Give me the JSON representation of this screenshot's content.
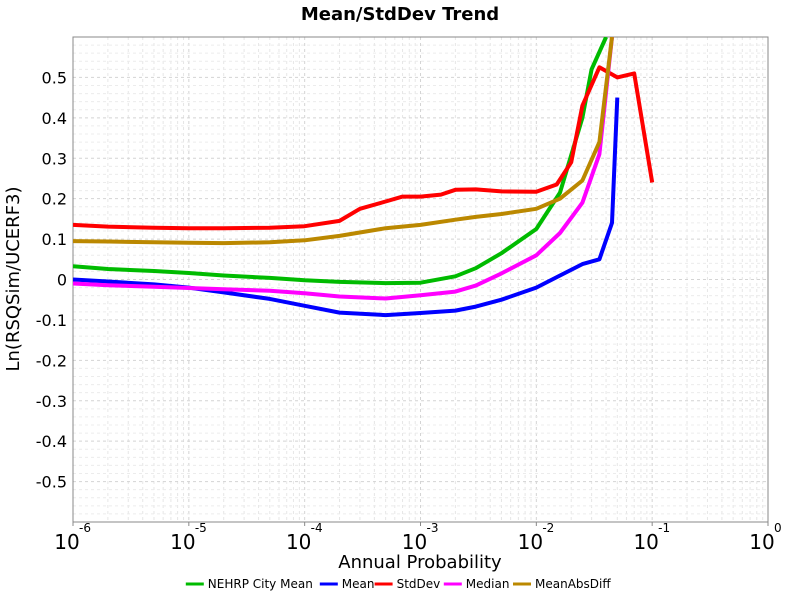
{
  "chart_data": {
    "type": "line",
    "title": "Mean/StdDev Trend",
    "xlabel": "Annual Probability",
    "ylabel": "Ln(RSQSim/UCERF3)",
    "x_scale": "log",
    "xlim": [
      1e-06,
      1
    ],
    "ylim": [
      -0.6,
      0.6
    ],
    "grid": true,
    "legend_position": "bottom",
    "x_tick_labels": [
      {
        "base": "10",
        "exp": "-6"
      },
      {
        "base": "10",
        "exp": "-5"
      },
      {
        "base": "10",
        "exp": "-4"
      },
      {
        "base": "10",
        "exp": "-3"
      },
      {
        "base": "10",
        "exp": "-2"
      },
      {
        "base": "10",
        "exp": "-1"
      },
      {
        "base": "10",
        "exp": "0"
      }
    ],
    "y_ticks": [
      0.5,
      0.4,
      0.3,
      0.2,
      0.1,
      0,
      -0.1,
      -0.2,
      -0.3,
      -0.4,
      -0.5
    ],
    "y_tick_labels": [
      "0.5",
      "0.4",
      "0.3",
      "0.2",
      "0.1",
      "0",
      "-0.1",
      "-0.2",
      "-0.3",
      "-0.4",
      "-0.5"
    ],
    "series": [
      {
        "name": "NEHRP City Mean",
        "color": "#00bb00",
        "x": [
          1e-06,
          2e-06,
          5e-06,
          1e-05,
          2e-05,
          5e-05,
          0.0001,
          0.0002,
          0.0005,
          0.001,
          0.002,
          0.003,
          0.005,
          0.01,
          0.016,
          0.025,
          0.03,
          0.04
        ],
        "y": [
          0.033,
          0.026,
          0.021,
          0.016,
          0.01,
          0.004,
          -0.002,
          -0.006,
          -0.009,
          -0.008,
          0.008,
          0.028,
          0.065,
          0.125,
          0.215,
          0.4,
          0.52,
          0.6
        ]
      },
      {
        "name": "Mean",
        "color": "#0000ff",
        "x": [
          1e-06,
          2e-06,
          5e-06,
          1e-05,
          2e-05,
          5e-05,
          0.0001,
          0.0002,
          0.0005,
          0.001,
          0.002,
          0.003,
          0.005,
          0.01,
          0.016,
          0.025,
          0.035,
          0.045,
          0.05
        ],
        "y": [
          0.0,
          -0.005,
          -0.012,
          -0.02,
          -0.032,
          -0.048,
          -0.065,
          -0.082,
          -0.088,
          -0.083,
          -0.077,
          -0.067,
          -0.05,
          -0.02,
          0.01,
          0.038,
          0.05,
          0.14,
          0.45
        ]
      },
      {
        "name": "StdDev",
        "color": "#ff0000",
        "x": [
          1e-06,
          2e-06,
          5e-06,
          1e-05,
          2e-05,
          5e-05,
          0.0001,
          0.0002,
          0.0003,
          0.0005,
          0.0007,
          0.001,
          0.0015,
          0.002,
          0.003,
          0.005,
          0.01,
          0.015,
          0.02,
          0.025,
          0.035,
          0.05,
          0.07,
          0.1
        ],
        "y": [
          0.135,
          0.131,
          0.128,
          0.127,
          0.127,
          0.128,
          0.132,
          0.145,
          0.175,
          0.193,
          0.205,
          0.205,
          0.21,
          0.222,
          0.223,
          0.218,
          0.217,
          0.235,
          0.29,
          0.43,
          0.525,
          0.5,
          0.51,
          0.24
        ]
      },
      {
        "name": "Median",
        "color": "#ff00ff",
        "x": [
          1e-06,
          2e-06,
          5e-06,
          1e-05,
          2e-05,
          5e-05,
          0.0001,
          0.0002,
          0.0005,
          0.001,
          0.002,
          0.003,
          0.005,
          0.01,
          0.016,
          0.025,
          0.035,
          0.045
        ],
        "y": [
          -0.01,
          -0.014,
          -0.018,
          -0.021,
          -0.024,
          -0.028,
          -0.034,
          -0.042,
          -0.047,
          -0.039,
          -0.03,
          -0.015,
          0.015,
          0.06,
          0.115,
          0.19,
          0.31,
          0.6
        ]
      },
      {
        "name": "MeanAbsDiff",
        "color": "#bb8800",
        "x": [
          1e-06,
          2e-06,
          5e-06,
          1e-05,
          2e-05,
          5e-05,
          0.0001,
          0.0002,
          0.0005,
          0.001,
          0.002,
          0.003,
          0.005,
          0.01,
          0.016,
          0.025,
          0.035,
          0.045
        ],
        "y": [
          0.095,
          0.094,
          0.092,
          0.091,
          0.09,
          0.092,
          0.097,
          0.108,
          0.127,
          0.135,
          0.148,
          0.155,
          0.162,
          0.175,
          0.2,
          0.245,
          0.34,
          0.6
        ]
      }
    ]
  }
}
